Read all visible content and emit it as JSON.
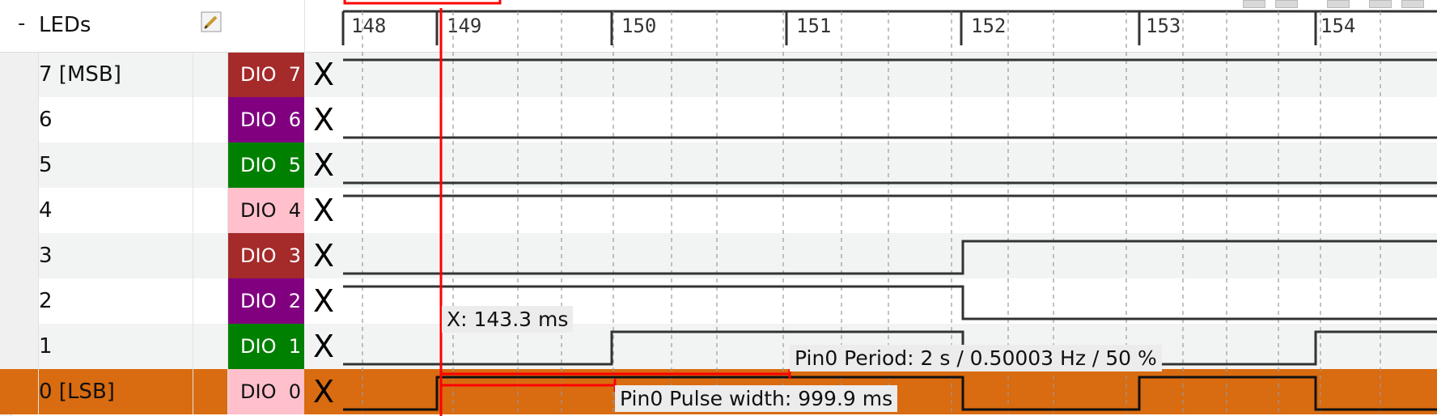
{
  "group": {
    "collapse": "-",
    "name": "LEDs",
    "edit_icon": "pencil-icon"
  },
  "ruler": {
    "ticks": [
      "148",
      "149",
      "150",
      "151",
      "152",
      "153",
      "154"
    ]
  },
  "channels": [
    {
      "name": "7 [MSB]",
      "dio": "DIO  7",
      "dio_color": "#a52a2a",
      "dio_text": "#ffffff",
      "remove": "X"
    },
    {
      "name": "6",
      "dio": "DIO  6",
      "dio_color": "#800080",
      "dio_text": "#ffffff",
      "remove": "X"
    },
    {
      "name": "5",
      "dio": "DIO  5",
      "dio_color": "#008000",
      "dio_text": "#ffffff",
      "remove": "X"
    },
    {
      "name": "4",
      "dio": "DIO  4",
      "dio_color": "#ffc0cb",
      "dio_text": "#111111",
      "remove": "X"
    },
    {
      "name": "3",
      "dio": "DIO  3",
      "dio_color": "#a52a2a",
      "dio_text": "#ffffff",
      "remove": "X"
    },
    {
      "name": "2",
      "dio": "DIO  2",
      "dio_color": "#800080",
      "dio_text": "#ffffff",
      "remove": "X"
    },
    {
      "name": "1",
      "dio": "DIO  1",
      "dio_color": "#008000",
      "dio_text": "#ffffff",
      "remove": "X"
    },
    {
      "name": "0 [LSB]",
      "dio": "DIO  0",
      "dio_color": "#ffc0cb",
      "dio_text": "#111111",
      "remove": "X"
    }
  ],
  "selected_channel_color": "#d96b10",
  "cursor": {
    "label": "X: 143.3 ms",
    "color": "#ff0000"
  },
  "measurements": {
    "period": "Pin0 Period: 2 s / 0.50003 Hz / 50 %",
    "pulse_width": "Pin0 Pulse width: 999.9 ms"
  }
}
